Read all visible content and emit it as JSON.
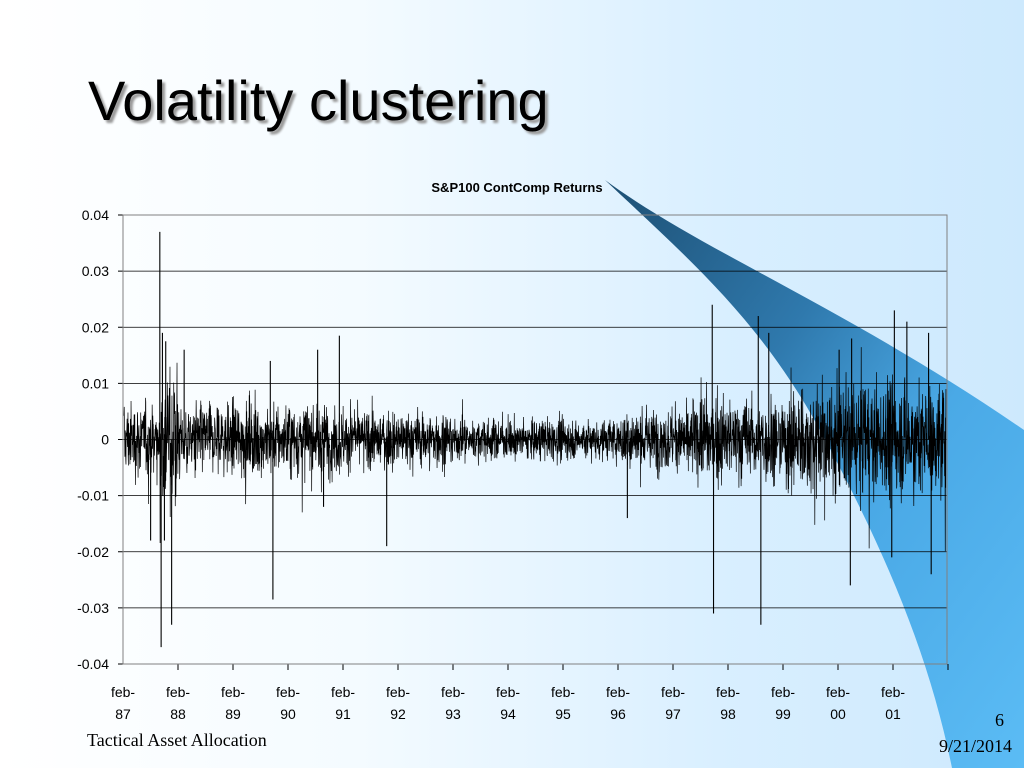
{
  "slide": {
    "title": "Volatility clustering",
    "footer_left": "Tactical Asset Allocation",
    "page_number": "6",
    "date": "9/21/2014",
    "accent_color": "#5bbcf5",
    "accent_dark": "#2a6a96"
  },
  "chart_data": {
    "type": "line",
    "title": "S&P100 ContComp Returns",
    "xlabel": "",
    "ylabel": "",
    "ylim": [
      -0.04,
      0.04
    ],
    "yticks": [
      0.04,
      0.03,
      0.02,
      0.01,
      0,
      -0.01,
      -0.02,
      -0.03,
      -0.04
    ],
    "ytick_labels": [
      "0.04",
      "0.03",
      "0.02",
      "0.01",
      "0",
      "-0.01",
      "-0.02",
      "-0.03",
      "-0.04"
    ],
    "x_range": [
      "1987-02",
      "2002-01"
    ],
    "xticks": [
      {
        "line1": "feb-",
        "line2": "87",
        "date": "1987-02"
      },
      {
        "line1": "feb-",
        "line2": "88",
        "date": "1988-02"
      },
      {
        "line1": "feb-",
        "line2": "89",
        "date": "1989-02"
      },
      {
        "line1": "feb-",
        "line2": "90",
        "date": "1990-02"
      },
      {
        "line1": "feb-",
        "line2": "91",
        "date": "1991-02"
      },
      {
        "line1": "feb-",
        "line2": "92",
        "date": "1992-02"
      },
      {
        "line1": "feb-",
        "line2": "93",
        "date": "1993-02"
      },
      {
        "line1": "feb-",
        "line2": "94",
        "date": "1994-02"
      },
      {
        "line1": "feb-",
        "line2": "95",
        "date": "1995-02"
      },
      {
        "line1": "feb-",
        "line2": "96",
        "date": "1996-02"
      },
      {
        "line1": "feb-",
        "line2": "97",
        "date": "1997-02"
      },
      {
        "line1": "feb-",
        "line2": "98",
        "date": "1998-02"
      },
      {
        "line1": "feb-",
        "line2": "99",
        "date": "1999-02"
      },
      {
        "line1": "feb-",
        "line2": "00",
        "date": "2000-02"
      },
      {
        "line1": "feb-",
        "line2": "01",
        "date": "2001-02"
      }
    ],
    "grid": true,
    "legend": "none",
    "series": [
      {
        "color": "#000000",
        "regimes": [
          {
            "start": "1987-02",
            "end": "1987-10",
            "sigma": 0.0045
          },
          {
            "start": "1987-10",
            "end": "1988-02",
            "sigma": 0.009
          },
          {
            "start": "1988-02",
            "end": "1991-02",
            "sigma": 0.0045
          },
          {
            "start": "1991-02",
            "end": "1993-02",
            "sigma": 0.0035
          },
          {
            "start": "1993-02",
            "end": "1996-02",
            "sigma": 0.0025
          },
          {
            "start": "1996-02",
            "end": "1997-06",
            "sigma": 0.0038
          },
          {
            "start": "1997-06",
            "end": "1999-02",
            "sigma": 0.0052
          },
          {
            "start": "1999-02",
            "end": "2002-01",
            "sigma": 0.0068
          }
        ],
        "spikes": [
          {
            "date": "1987-10",
            "value": 0.037
          },
          {
            "date": "1987-10",
            "value": -0.037
          },
          {
            "date": "1987-10",
            "value": 0.019
          },
          {
            "date": "1987-11",
            "value": -0.018
          },
          {
            "date": "1987-11",
            "value": 0.0175
          },
          {
            "date": "1987-12",
            "value": -0.033
          },
          {
            "date": "1987-08",
            "value": -0.018
          },
          {
            "date": "1988-03",
            "value": 0.016
          },
          {
            "date": "1989-10",
            "value": -0.0285
          },
          {
            "date": "1989-10",
            "value": 0.014
          },
          {
            "date": "1990-08",
            "value": 0.016
          },
          {
            "date": "1990-09",
            "value": -0.012
          },
          {
            "date": "1991-01",
            "value": 0.0185
          },
          {
            "date": "1991-11",
            "value": -0.019
          },
          {
            "date": "1996-03",
            "value": -0.014
          },
          {
            "date": "1997-10",
            "value": 0.024
          },
          {
            "date": "1997-10",
            "value": -0.031
          },
          {
            "date": "1998-08",
            "value": -0.033
          },
          {
            "date": "1998-08",
            "value": 0.022
          },
          {
            "date": "1998-10",
            "value": 0.019
          },
          {
            "date": "2000-01",
            "value": 0.016
          },
          {
            "date": "2000-04",
            "value": -0.026
          },
          {
            "date": "2000-04",
            "value": 0.018
          },
          {
            "date": "2001-01",
            "value": 0.023
          },
          {
            "date": "2001-01",
            "value": -0.021
          },
          {
            "date": "2001-04",
            "value": 0.021
          },
          {
            "date": "2001-09",
            "value": -0.024
          },
          {
            "date": "2001-09",
            "value": 0.019
          }
        ]
      }
    ]
  }
}
